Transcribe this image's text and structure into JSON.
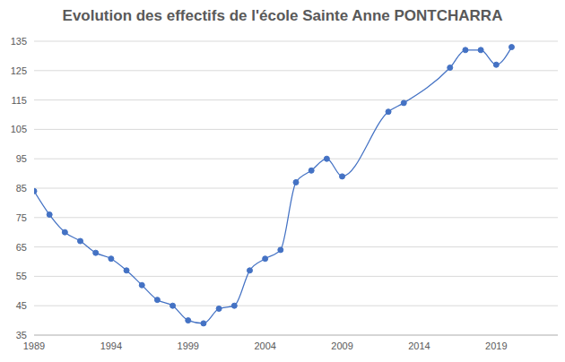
{
  "chart_data": {
    "type": "line",
    "title": "Evolution des effectifs de l'école Sainte Anne PONTCHARRA",
    "x": [
      1989,
      1990,
      1991,
      1992,
      1993,
      1994,
      1995,
      1996,
      1997,
      1998,
      1999,
      2000,
      2001,
      2002,
      2003,
      2004,
      2005,
      2006,
      2007,
      2008,
      2009,
      2012,
      2013,
      2016,
      2017,
      2018,
      2019,
      2020
    ],
    "values": [
      84,
      76,
      70,
      67,
      63,
      61,
      57,
      52,
      47,
      45,
      40,
      39,
      44,
      45,
      57,
      61,
      64,
      87,
      91,
      95,
      89,
      111,
      114,
      126,
      132,
      132,
      127,
      133
    ],
    "color": "#4472c4",
    "marker": "circle",
    "line_style": "solid",
    "xlim": [
      1989,
      2023
    ],
    "xticks": [
      1989,
      1994,
      1999,
      2004,
      2009,
      2014,
      2019
    ],
    "ylim": [
      35,
      135
    ],
    "yticks": [
      35,
      45,
      55,
      65,
      75,
      85,
      95,
      105,
      115,
      125,
      135
    ],
    "grid": true
  }
}
